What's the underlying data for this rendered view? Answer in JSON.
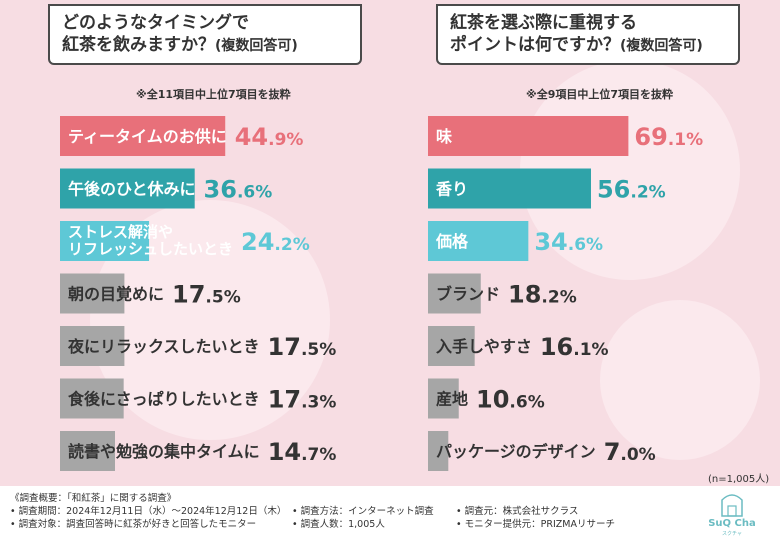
{
  "chart_data": [
    {
      "type": "bar",
      "orientation": "horizontal",
      "title": "どのようなタイミングで\n紅茶を飲みますか？",
      "title_suffix": "(複数回答可)",
      "note": "※全11項目中上位7項目を抜粋",
      "unit": "%",
      "categories": [
        "ティータイムのお供に",
        "午後のひと休みに",
        "ストレス解消や\nリフレッシュしたいとき",
        "朝の目覚めに",
        "夜にリラックスしたいとき",
        "食後にさっぱりしたいとき",
        "読書や勉強の集中タイムに"
      ],
      "values": [
        44.9,
        36.6,
        24.2,
        17.5,
        17.5,
        17.3,
        14.7
      ],
      "colors": [
        "#e8707a",
        "#2fa3a9",
        "#5ec8d6",
        "#a6a6a6",
        "#a6a6a6",
        "#a6a6a6",
        "#a6a6a6"
      ],
      "value_colors": [
        "#e8707a",
        "#2fa3a9",
        "#5ec8d6",
        "#333333",
        "#333333",
        "#333333",
        "#333333"
      ]
    },
    {
      "type": "bar",
      "orientation": "horizontal",
      "title": "紅茶を選ぶ際に重視する\nポイントは何ですか？",
      "title_suffix": "(複数回答可)",
      "note": "※全9項目中上位7項目を抜粋",
      "unit": "%",
      "categories": [
        "味",
        "香り",
        "価格",
        "ブランド",
        "入手しやすさ",
        "産地",
        "パッケージのデザイン"
      ],
      "values": [
        69.1,
        56.2,
        34.6,
        18.2,
        16.1,
        10.6,
        7.0
      ],
      "colors": [
        "#e8707a",
        "#2fa3a9",
        "#5ec8d6",
        "#a6a6a6",
        "#a6a6a6",
        "#a6a6a6",
        "#a6a6a6"
      ],
      "value_colors": [
        "#e8707a",
        "#2fa3a9",
        "#5ec8d6",
        "#333333",
        "#333333",
        "#333333",
        "#333333"
      ]
    }
  ],
  "n_count": "(n=1,005人)",
  "footer": {
    "overview": "《調査概要：「和紅茶」に関する調査》",
    "period": "• 調査期間：2024年12月11日（水）～2024年12月12日（木）",
    "method": "• 調査方法：インターネット調査",
    "organizer": "• 調査元：株式会社サクラス",
    "target": "• 調査対象：調査回答時に紅茶が好きと回答したモニター",
    "respondents": "• 調査人数：1,005人",
    "provider": "• モニター提供元：PRIZMAリサーチ"
  },
  "logo": {
    "text": "SuQ Cha",
    "sub": "スクチャ"
  }
}
